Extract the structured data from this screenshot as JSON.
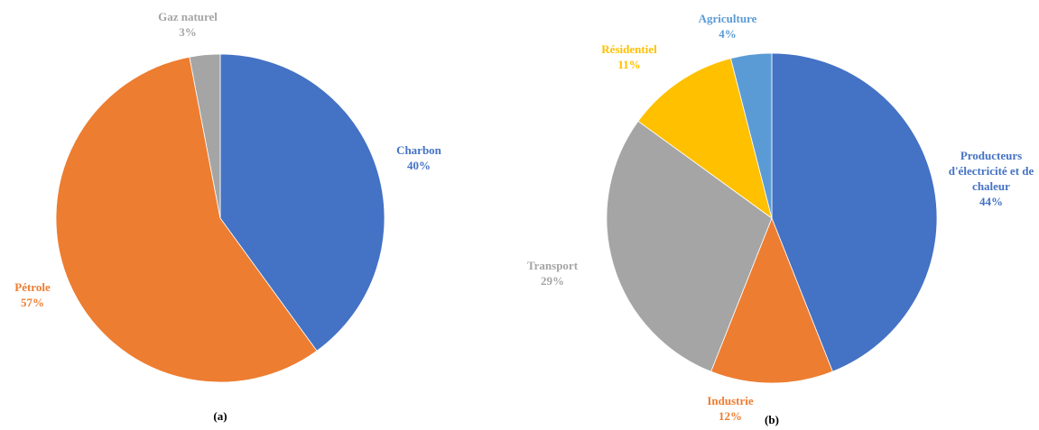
{
  "chart_data": [
    {
      "type": "pie",
      "title": "(a)",
      "categories": [
        "Charbon",
        "Pétrole",
        "Gaz naturel"
      ],
      "values": [
        40,
        57,
        3
      ],
      "value_labels": [
        "40%",
        "57%",
        "3%"
      ],
      "colors": [
        "#4472c4",
        "#ed7d31",
        "#a5a5a5"
      ]
    },
    {
      "type": "pie",
      "title": "(b)",
      "categories": [
        "Producteurs d'électricité et de chaleur",
        "Industrie",
        "Transport",
        "Résidentiel",
        "Agriculture"
      ],
      "values": [
        44,
        12,
        29,
        11,
        4
      ],
      "value_labels": [
        "44%",
        "12%",
        "29%",
        "11%",
        "4%"
      ],
      "colors": [
        "#4472c4",
        "#ed7d31",
        "#a5a5a5",
        "#ffc000",
        "#5b9bd5"
      ]
    }
  ]
}
